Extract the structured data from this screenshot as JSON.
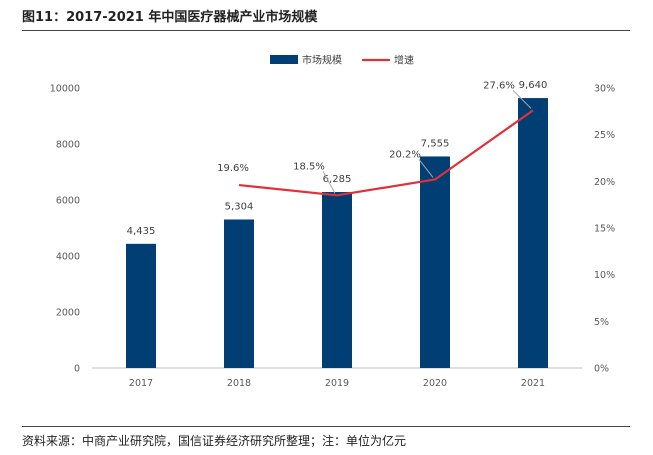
{
  "figure": {
    "title": "图11：2017-2021 年中国医疗器械产业市场规模",
    "source": "资料来源：中商产业研究院，国信证券经济研究所整理；注：单位为亿元"
  },
  "colors": {
    "bar": "#003e73",
    "line": "#e0303a",
    "axis": "#bfbfbf",
    "text": "#595959"
  },
  "chart_data": {
    "type": "bar",
    "categories": [
      "2017",
      "2018",
      "2019",
      "2020",
      "2021"
    ],
    "series": [
      {
        "name": "市场规模",
        "type": "bar",
        "axis": "left",
        "values": [
          4435,
          5304,
          6285,
          7555,
          9640
        ],
        "labels": [
          "4,435",
          "5,304",
          "6,285",
          "7,555",
          "9,640"
        ]
      },
      {
        "name": "增速",
        "type": "line",
        "axis": "right",
        "values": [
          null,
          19.6,
          18.5,
          20.2,
          27.6
        ],
        "labels": [
          "",
          "19.6%",
          "18.5%",
          "20.2%",
          "27.6%"
        ]
      }
    ],
    "y_left": {
      "min": 0,
      "max": 10000,
      "ticks": [
        0,
        2000,
        4000,
        6000,
        8000,
        10000
      ],
      "tick_labels": [
        "0",
        "2000",
        "4000",
        "6000",
        "8000",
        "10000"
      ]
    },
    "y_right": {
      "min": 0,
      "max": 30,
      "ticks": [
        0,
        5,
        10,
        15,
        20,
        25,
        30
      ],
      "tick_labels": [
        "0%",
        "5%",
        "10%",
        "15%",
        "20%",
        "25%",
        "30%"
      ]
    },
    "legend": {
      "position": "top-center",
      "items": [
        "市场规模",
        "增速"
      ]
    },
    "grid": false
  }
}
